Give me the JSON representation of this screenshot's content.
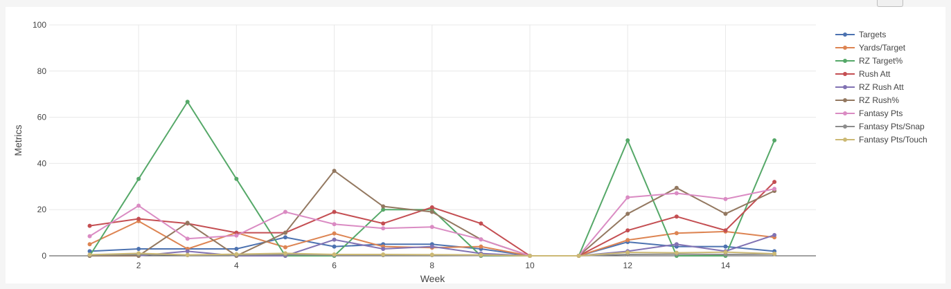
{
  "chart_data": {
    "type": "line",
    "title": "",
    "xlabel": "Week",
    "ylabel": "Metrics",
    "xlim": [
      1,
      16
    ],
    "ylim": [
      0,
      100
    ],
    "x_ticks": [
      2,
      4,
      6,
      8,
      10,
      12,
      14
    ],
    "y_ticks": [
      0,
      20,
      40,
      60,
      80,
      100
    ],
    "grid": true,
    "legend_position": "top-right",
    "x": [
      1,
      2,
      3,
      4,
      5,
      6,
      7,
      8,
      9,
      10,
      11,
      12,
      13,
      14,
      15
    ],
    "series": [
      {
        "name": "Targets",
        "color": "#4c72b0",
        "values": [
          2,
          3,
          3,
          3,
          8,
          4,
          5,
          5,
          3,
          0,
          0,
          6,
          4,
          4,
          2
        ]
      },
      {
        "name": "Yards/Target",
        "color": "#dd8452",
        "values": [
          5,
          15,
          3,
          10,
          3.7,
          9.7,
          4,
          3.5,
          4,
          0,
          0,
          6.8,
          9.8,
          10.5,
          8
        ]
      },
      {
        "name": "RZ Target%",
        "color": "#55a868",
        "values": [
          0,
          33.3,
          66.7,
          33.3,
          0,
          0,
          20,
          20,
          0,
          0,
          0,
          50,
          0,
          0,
          50
        ]
      },
      {
        "name": "Rush Att",
        "color": "#c44e52",
        "values": [
          13,
          16,
          14,
          10,
          10,
          19,
          14,
          21,
          14,
          0,
          0,
          11,
          17,
          11,
          32
        ]
      },
      {
        "name": "RZ Rush Att",
        "color": "#8172b3",
        "values": [
          0,
          0,
          2,
          0,
          0,
          7,
          3,
          4,
          1,
          0,
          0,
          2,
          5,
          2,
          9
        ]
      },
      {
        "name": "RZ Rush%",
        "color": "#937860",
        "values": [
          0,
          0,
          14.3,
          0,
          10,
          36.8,
          21.4,
          19,
          7.1,
          0,
          0,
          18.2,
          29.4,
          18.2,
          28.1
        ]
      },
      {
        "name": "Fantasy Pts",
        "color": "#da8bc3",
        "values": [
          8.5,
          21.7,
          7.4,
          8.8,
          19,
          13.7,
          11.9,
          12.5,
          7.1,
          0,
          0,
          25.3,
          27.1,
          24.6,
          29
        ]
      },
      {
        "name": "Fantasy Pts/Snap",
        "color": "#8c8c8c",
        "values": [
          0.3,
          0.6,
          0.3,
          0.3,
          0.5,
          0.3,
          0.3,
          0.3,
          0.2,
          0,
          0,
          0.6,
          0.7,
          0.6,
          0.7
        ]
      },
      {
        "name": "Fantasy Pts/Touch",
        "color": "#ccb974",
        "values": [
          0.5,
          1.1,
          0.4,
          0.7,
          1.1,
          0.6,
          0.6,
          0.5,
          0.4,
          0,
          0,
          1.5,
          1.3,
          1.6,
          0.9
        ]
      }
    ]
  }
}
